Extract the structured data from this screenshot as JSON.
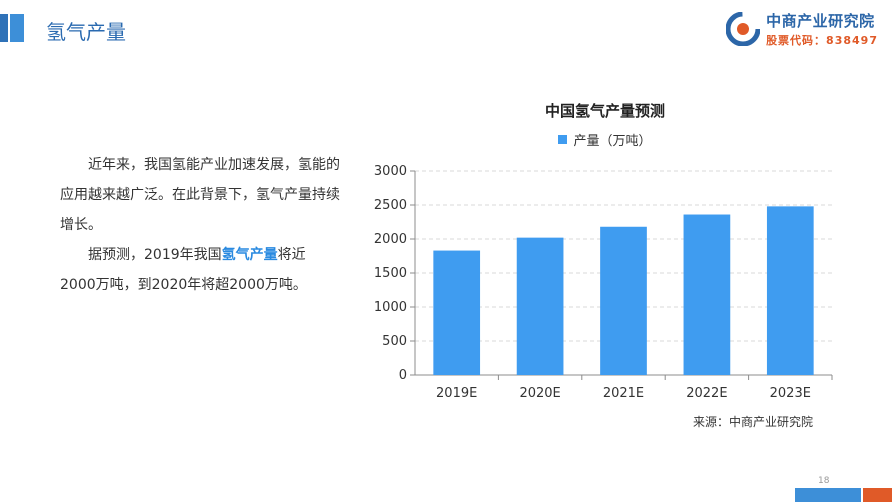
{
  "header": {
    "title": "氢气产量",
    "logo_name": "中商产业研究院",
    "logo_code": "股票代码：838497"
  },
  "body": {
    "para1": "近年来，我国氢能产业加速发展，氢能的应用越来越广泛。在此背景下，氢气产量持续增长。",
    "para2_pre": "据预测，2019年我国",
    "para2_highlight": "氢气产量",
    "para2_post": "将近2000万吨，到2020年将超2000万吨。"
  },
  "chart_data": {
    "type": "bar",
    "title": "中国氢气产量预测",
    "categories": [
      "2019E",
      "2020E",
      "2021E",
      "2022E",
      "2023E"
    ],
    "series": [
      {
        "name": "产量（万吨）",
        "values": [
          1830,
          2020,
          2180,
          2360,
          2480
        ]
      }
    ],
    "ylim": [
      0,
      3000
    ],
    "yticks": [
      0,
      500,
      1000,
      1500,
      2000,
      2500,
      3000
    ],
    "grid": true,
    "legend": "top-center",
    "bar_color": "#3f9cf0"
  },
  "footer": {
    "source": "来源：中商产业研究院",
    "page_number": "18"
  }
}
